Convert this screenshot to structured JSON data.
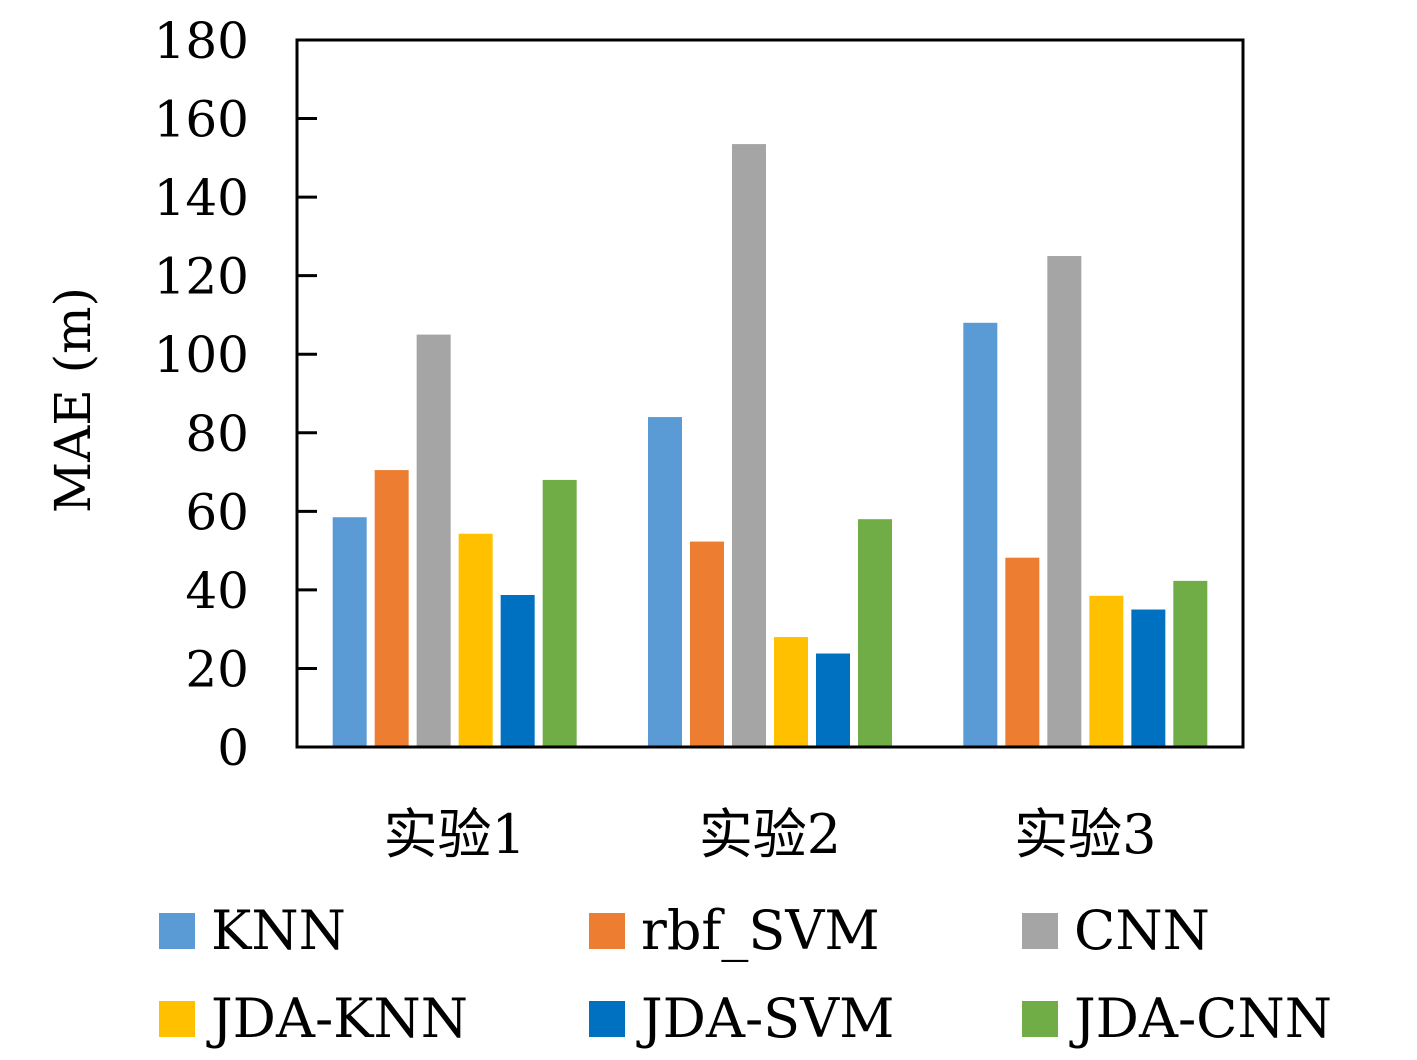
{
  "chart_data": {
    "type": "bar",
    "title": "",
    "xlabel": "",
    "ylabel": "MAE (m)",
    "ylim": [
      0,
      180
    ],
    "yticks": [
      "0",
      "20",
      "40",
      "60",
      "80",
      "100",
      "120",
      "140",
      "160",
      "180"
    ],
    "categories": [
      "实验1",
      "实验2",
      "实验3"
    ],
    "grid": false,
    "legend_position": "bottom",
    "series": [
      {
        "name": "KNN",
        "color": "#5B9BD5",
        "values": [
          58.5,
          84,
          108
        ]
      },
      {
        "name": "rbf_SVM",
        "color": "#ED7D31",
        "values": [
          70.5,
          52.3,
          48.2
        ]
      },
      {
        "name": "CNN",
        "color": "#A5A5A5",
        "values": [
          105,
          153.5,
          125
        ]
      },
      {
        "name": "JDA-KNN",
        "color": "#FFC000",
        "values": [
          54.3,
          28,
          38.5
        ]
      },
      {
        "name": "JDA-SVM",
        "color": "#0070C0",
        "values": [
          38.7,
          23.8,
          35
        ]
      },
      {
        "name": "JDA-CNN",
        "color": "#70AD47",
        "values": [
          68,
          58,
          42.3
        ]
      }
    ]
  }
}
